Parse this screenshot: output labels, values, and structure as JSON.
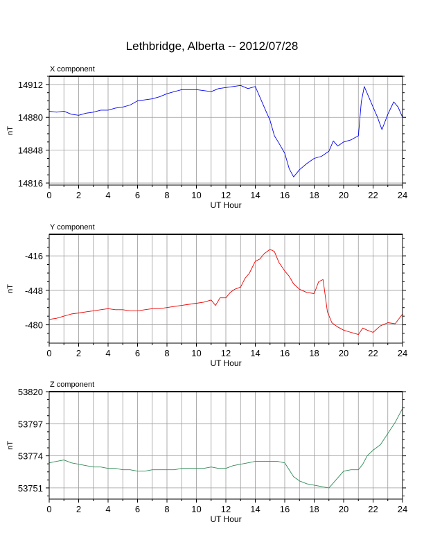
{
  "title": "Lethbridge, Alberta -- 2012/07/28",
  "chart_data": [
    {
      "type": "line",
      "panel_title": "X component",
      "xlabel": "UT Hour",
      "ylabel": "nT",
      "xlim": [
        0,
        24
      ],
      "ylim": [
        14814,
        14920
      ],
      "xticks": [
        0,
        2,
        4,
        6,
        8,
        10,
        12,
        14,
        16,
        18,
        20,
        22,
        24
      ],
      "yticks": [
        14816,
        14848,
        14880,
        14912
      ],
      "grid": true,
      "color": "#0000ee",
      "series": [
        {
          "x": [
            0,
            0.5,
            1,
            1.5,
            2,
            2.5,
            3,
            3.5,
            4,
            4.5,
            5,
            5.5,
            6,
            6.5,
            7,
            7.5,
            8,
            8.5,
            9,
            9.5,
            10,
            10.5,
            11,
            11.5,
            12,
            12.5,
            13,
            13.5,
            14,
            14.3,
            14.6,
            15,
            15.3,
            15.6,
            16,
            16.3,
            16.6,
            17,
            17.5,
            18,
            18.5,
            19,
            19.3,
            19.6,
            20,
            20.5,
            21,
            21.2,
            21.4,
            21.7,
            22,
            22.3,
            22.6,
            23,
            23.4,
            23.7,
            24
          ],
          "y": [
            14886,
            14885,
            14886,
            14883,
            14882,
            14884,
            14885,
            14887,
            14887,
            14889,
            14890,
            14892,
            14896,
            14897,
            14898,
            14900,
            14903,
            14905,
            14907,
            14907,
            14907,
            14906,
            14905,
            14908,
            14909,
            14910,
            14911,
            14908,
            14910,
            14900,
            14890,
            14877,
            14862,
            14855,
            14845,
            14830,
            14822,
            14829,
            14835,
            14840,
            14842,
            14847,
            14857,
            14852,
            14856,
            14858,
            14862,
            14895,
            14910,
            14900,
            14890,
            14880,
            14868,
            14883,
            14895,
            14890,
            14880
          ]
        }
      ]
    },
    {
      "type": "line",
      "panel_title": "Y component",
      "xlabel": "UT Hour",
      "ylabel": "nT",
      "xlim": [
        0,
        24
      ],
      "ylim": [
        -497,
        -396
      ],
      "xticks": [
        0,
        2,
        4,
        6,
        8,
        10,
        12,
        14,
        16,
        18,
        20,
        22,
        24
      ],
      "yticks": [
        -416,
        -448,
        -480
      ],
      "grid": true,
      "color": "#ee0000",
      "series": [
        {
          "x": [
            0,
            0.5,
            1,
            1.5,
            2,
            2.5,
            3,
            3.5,
            4,
            4.5,
            5,
            5.5,
            6,
            6.5,
            7,
            7.5,
            8,
            8.5,
            9,
            9.5,
            10,
            10.5,
            11,
            11.3,
            11.6,
            12,
            12.3,
            12.6,
            13,
            13.3,
            13.6,
            14,
            14.3,
            14.6,
            15,
            15.3,
            15.6,
            16,
            16.3,
            16.6,
            17,
            17.5,
            18,
            18.3,
            18.6,
            18.9,
            19.2,
            19.6,
            20,
            20.5,
            21,
            21.3,
            21.6,
            22,
            22.5,
            23,
            23.5,
            24
          ],
          "y": [
            -475,
            -474,
            -472,
            -470,
            -469,
            -468,
            -467,
            -466,
            -465,
            -466,
            -466,
            -467,
            -467,
            -466,
            -465,
            -465,
            -464,
            -463,
            -462,
            -461,
            -460,
            -459,
            -457,
            -462,
            -455,
            -455,
            -450,
            -447,
            -445,
            -437,
            -432,
            -421,
            -419,
            -414,
            -410,
            -412,
            -422,
            -430,
            -435,
            -442,
            -447,
            -450,
            -451,
            -440,
            -438,
            -468,
            -478,
            -482,
            -485,
            -487,
            -489,
            -483,
            -485,
            -487,
            -481,
            -478,
            -479,
            -470
          ]
        }
      ]
    },
    {
      "type": "line",
      "panel_title": "Z component",
      "xlabel": "UT Hour",
      "ylabel": "nT",
      "xlim": [
        0,
        24
      ],
      "ylim": [
        53743,
        53820
      ],
      "xticks": [
        0,
        2,
        4,
        6,
        8,
        10,
        12,
        14,
        16,
        18,
        20,
        22,
        24
      ],
      "yticks": [
        53751,
        53774,
        53797,
        53820
      ],
      "grid": true,
      "color": "#2e8b57",
      "series": [
        {
          "x": [
            0,
            0.5,
            1,
            1.5,
            2,
            2.5,
            3,
            3.5,
            4,
            4.5,
            5,
            5.5,
            6,
            6.5,
            7,
            7.5,
            8,
            8.5,
            9,
            9.5,
            10,
            10.5,
            11,
            11.5,
            12,
            12.5,
            13,
            13.5,
            14,
            14.5,
            15,
            15.5,
            16,
            16.3,
            16.6,
            17,
            17.5,
            18,
            18.5,
            19,
            19.5,
            20,
            20.5,
            21,
            21.3,
            21.6,
            22,
            22.5,
            23,
            23.5,
            24
          ],
          "y": [
            53769,
            53770,
            53771,
            53769,
            53768,
            53767,
            53766,
            53766,
            53765,
            53765,
            53764,
            53764,
            53763,
            53763,
            53764,
            53764,
            53764,
            53764,
            53765,
            53765,
            53765,
            53765,
            53766,
            53765,
            53765,
            53767,
            53768,
            53769,
            53770,
            53770,
            53770,
            53770,
            53769,
            53764,
            53759,
            53756,
            53754,
            53753,
            53752,
            53751,
            53757,
            53763,
            53764,
            53764,
            53768,
            53774,
            53778,
            53782,
            53790,
            53798,
            53808
          ]
        }
      ]
    }
  ]
}
